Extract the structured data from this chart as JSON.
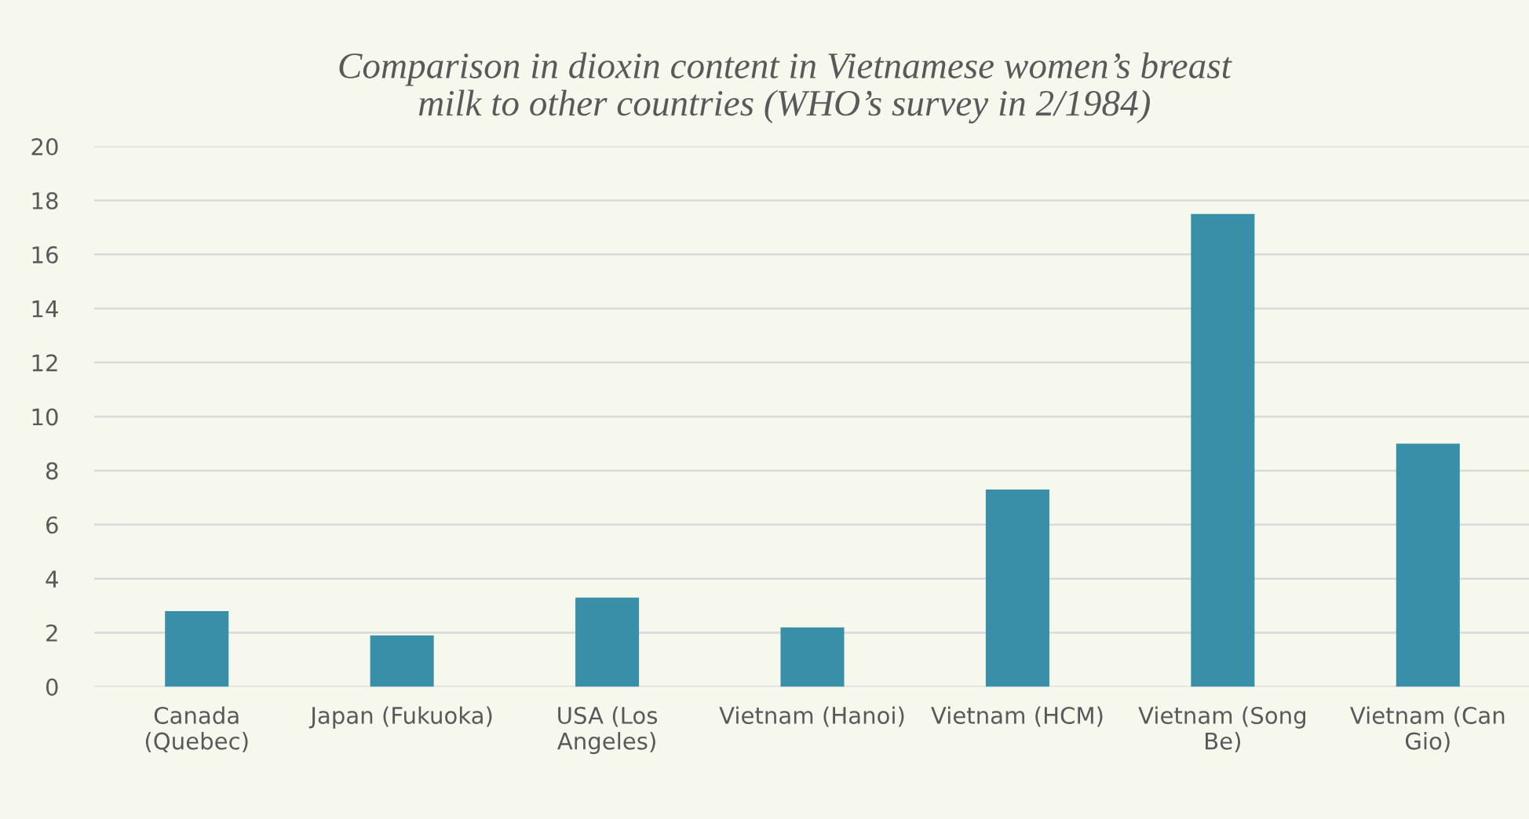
{
  "chart_data": {
    "type": "bar",
    "title": "Comparison in dioxin content in Vietnamese women’s breast\nmilk to other countries (WHO’s survey in 2/1984)",
    "categories": [
      "Canada\n(Quebec)",
      "Japan (Fukuoka)",
      "USA (Los\nAngeles)",
      "Vietnam (Hanoi)",
      "Vietnam (HCM)",
      "Vietnam (Song\nBe)",
      "Vietnam (Can\nGio)"
    ],
    "values": [
      2.8,
      1.9,
      3.3,
      2.2,
      7.3,
      17.5,
      9.0
    ],
    "color": "#3a8fa8",
    "ylim": [
      0,
      20
    ],
    "yticks": [
      0,
      2,
      4,
      6,
      8,
      10,
      12,
      14,
      16,
      18,
      20
    ],
    "grid": "y",
    "legend": false
  }
}
